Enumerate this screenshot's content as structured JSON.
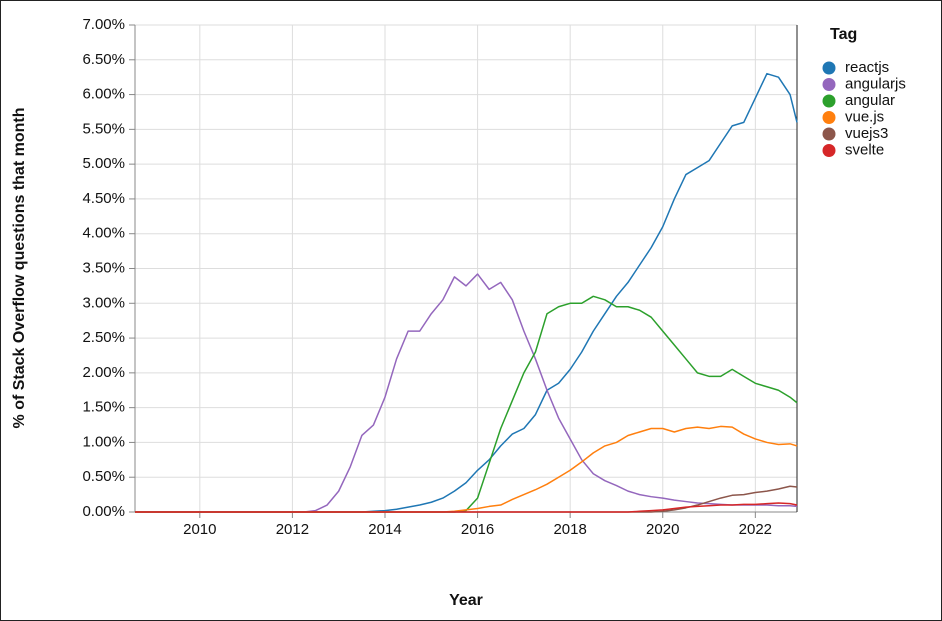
{
  "chart_data": {
    "type": "line",
    "x_label": "Year",
    "y_label": "% of Stack Overflow questions that month",
    "legend_title": "Tag",
    "legend_position": "right",
    "grid": true,
    "xlim": [
      2008.6,
      2022.9
    ],
    "ylim": [
      0,
      7
    ],
    "xticks": [
      2010,
      2012,
      2014,
      2016,
      2018,
      2020,
      2022
    ],
    "yticks": [
      {
        "value": 0,
        "label": "0.00%"
      },
      {
        "value": 0.5,
        "label": "0.50%"
      },
      {
        "value": 1,
        "label": "1.00%"
      },
      {
        "value": 1.5,
        "label": "1.50%"
      },
      {
        "value": 2,
        "label": "2.00%"
      },
      {
        "value": 2.5,
        "label": "2.50%"
      },
      {
        "value": 3,
        "label": "3.00%"
      },
      {
        "value": 3.5,
        "label": "3.50%"
      },
      {
        "value": 4,
        "label": "4.00%"
      },
      {
        "value": 4.5,
        "label": "4.50%"
      },
      {
        "value": 5,
        "label": "5.00%"
      },
      {
        "value": 5.5,
        "label": "5.50%"
      },
      {
        "value": 6,
        "label": "6.00%"
      },
      {
        "value": 6.5,
        "label": "6.50%"
      },
      {
        "value": 7,
        "label": "7.00%"
      }
    ],
    "x": [
      2008.6,
      2009,
      2010,
      2011,
      2012,
      2012.25,
      2012.5,
      2012.75,
      2013,
      2013.25,
      2013.5,
      2013.75,
      2014,
      2014.25,
      2014.5,
      2014.75,
      2015,
      2015.25,
      2015.5,
      2015.75,
      2016,
      2016.25,
      2016.5,
      2016.75,
      2017,
      2017.25,
      2017.5,
      2017.75,
      2018,
      2018.25,
      2018.5,
      2018.75,
      2019,
      2019.25,
      2019.5,
      2019.75,
      2020,
      2020.25,
      2020.5,
      2020.75,
      2021,
      2021.25,
      2021.5,
      2021.75,
      2022,
      2022.25,
      2022.5,
      2022.75,
      2022.9
    ],
    "series": [
      {
        "name": "reactjs",
        "color": "#1f77b4",
        "values": [
          0,
          0,
          0,
          0,
          0,
          0,
          0,
          0,
          0,
          0,
          0,
          0.01,
          0.02,
          0.04,
          0.07,
          0.1,
          0.14,
          0.2,
          0.3,
          0.42,
          0.6,
          0.75,
          0.95,
          1.12,
          1.2,
          1.4,
          1.75,
          1.85,
          2.05,
          2.3,
          2.6,
          2.85,
          3.1,
          3.3,
          3.55,
          3.8,
          4.1,
          4.5,
          4.85,
          4.95,
          5.05,
          5.3,
          5.55,
          5.6,
          5.95,
          6.3,
          6.25,
          6.0,
          5.6
        ]
      },
      {
        "name": "angularjs",
        "color": "#9467bd",
        "values": [
          0,
          0,
          0,
          0,
          0,
          0,
          0.02,
          0.1,
          0.3,
          0.65,
          1.1,
          1.25,
          1.65,
          2.2,
          2.6,
          2.6,
          2.85,
          3.05,
          3.38,
          3.25,
          3.42,
          3.2,
          3.3,
          3.05,
          2.6,
          2.2,
          1.75,
          1.35,
          1.05,
          0.75,
          0.55,
          0.45,
          0.38,
          0.3,
          0.25,
          0.22,
          0.2,
          0.17,
          0.15,
          0.13,
          0.12,
          0.11,
          0.1,
          0.1,
          0.1,
          0.1,
          0.09,
          0.09,
          0.08
        ]
      },
      {
        "name": "angular",
        "color": "#2ca02c",
        "values": [
          0,
          0,
          0,
          0,
          0,
          0,
          0,
          0,
          0,
          0,
          0,
          0,
          0,
          0,
          0,
          0,
          0,
          0,
          0,
          0.02,
          0.2,
          0.7,
          1.2,
          1.6,
          2.0,
          2.3,
          2.85,
          2.95,
          3.0,
          3.0,
          3.1,
          3.05,
          2.95,
          2.95,
          2.9,
          2.8,
          2.6,
          2.4,
          2.2,
          2.0,
          1.95,
          1.95,
          2.05,
          1.95,
          1.85,
          1.8,
          1.75,
          1.65,
          1.57
        ]
      },
      {
        "name": "vue.js",
        "color": "#ff7f0e",
        "values": [
          0,
          0,
          0,
          0,
          0,
          0,
          0,
          0,
          0,
          0,
          0,
          0,
          0,
          0,
          0,
          0,
          0,
          0,
          0.01,
          0.03,
          0.05,
          0.08,
          0.1,
          0.18,
          0.25,
          0.32,
          0.4,
          0.5,
          0.6,
          0.72,
          0.85,
          0.95,
          1.0,
          1.1,
          1.15,
          1.2,
          1.2,
          1.15,
          1.2,
          1.22,
          1.2,
          1.23,
          1.22,
          1.12,
          1.05,
          1.0,
          0.97,
          0.98,
          0.95
        ]
      },
      {
        "name": "vuejs3",
        "color": "#8c564b",
        "values": [
          0,
          0,
          0,
          0,
          0,
          0,
          0,
          0,
          0,
          0,
          0,
          0,
          0,
          0,
          0,
          0,
          0,
          0,
          0,
          0,
          0,
          0,
          0,
          0,
          0,
          0,
          0,
          0,
          0,
          0,
          0,
          0,
          0,
          0,
          0,
          0,
          0.01,
          0.03,
          0.06,
          0.1,
          0.15,
          0.2,
          0.24,
          0.25,
          0.28,
          0.3,
          0.33,
          0.37,
          0.36
        ]
      },
      {
        "name": "svelte",
        "color": "#d62728",
        "values": [
          0,
          0,
          0,
          0,
          0,
          0,
          0,
          0,
          0,
          0,
          0,
          0,
          0,
          0,
          0,
          0,
          0,
          0,
          0,
          0,
          0,
          0,
          0,
          0,
          0,
          0,
          0,
          0,
          0,
          0,
          0,
          0,
          0,
          0,
          0.01,
          0.02,
          0.03,
          0.05,
          0.07,
          0.08,
          0.09,
          0.1,
          0.1,
          0.11,
          0.11,
          0.12,
          0.13,
          0.12,
          0.1
        ]
      }
    ]
  }
}
